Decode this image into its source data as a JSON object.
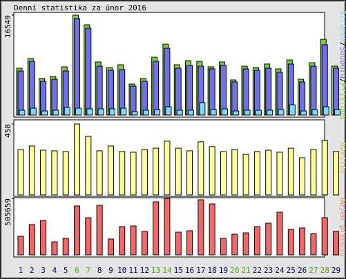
{
  "chart_data": [
    {
      "type": "bar",
      "title": "Denní statistika za únor 2016",
      "ylim": [
        0,
        16549
      ],
      "yticks": [
        16549
      ],
      "legend_separator": "/",
      "series": [
        {
          "name": "Přístupů",
          "color": "#7ccc3c",
          "values": [
            7760,
            9360,
            6050,
            6390,
            7990,
            16549,
            14950,
            8790,
            7870,
            8330,
            5130,
            6050,
            9580,
            11750,
            8330,
            9010,
            8900,
            7990,
            8790,
            5820,
            8100,
            7870,
            8450,
            7650,
            9130,
            5930,
            8670,
            12550,
            8100
          ]
        },
        {
          "name": "Souborů",
          "color": "#7070e8",
          "values": [
            7300,
            8900,
            5590,
            5930,
            7300,
            15970,
            14380,
            8100,
            7420,
            7530,
            4790,
            5590,
            8900,
            11070,
            7760,
            8220,
            8100,
            7650,
            8220,
            5480,
            7650,
            7420,
            7760,
            7080,
            8450,
            5480,
            8100,
            11640,
            7760
          ]
        },
        {
          "name": "Stránek",
          "color": "#80d8ff",
          "values": [
            800,
            1140,
            680,
            800,
            1260,
            1140,
            1030,
            1030,
            1030,
            1140,
            570,
            800,
            910,
            1370,
            800,
            800,
            2050,
            910,
            1030,
            680,
            800,
            800,
            800,
            910,
            1710,
            680,
            910,
            1370,
            910
          ]
        }
      ]
    },
    {
      "type": "bar",
      "ylim": [
        0,
        458
      ],
      "yticks": [
        458
      ],
      "series": [
        {
          "name": "Návštěv",
          "color": "#ffff99",
          "label_color": "#c8c860",
          "values": [
            294,
            316,
            289,
            285,
            280,
            458,
            378,
            285,
            316,
            280,
            276,
            294,
            302,
            347,
            302,
            285,
            343,
            312,
            280,
            294,
            262,
            280,
            289,
            276,
            302,
            240,
            294,
            352,
            280
          ]
        }
      ]
    },
    {
      "type": "bar",
      "ylim": [
        0,
        505659
      ],
      "yticks": [
        505659
      ],
      "categories": [
        "1",
        "2",
        "3",
        "4",
        "5",
        "6",
        "7",
        "8",
        "9",
        "10",
        "11",
        "12",
        "13",
        "14",
        "15",
        "16",
        "17",
        "18",
        "19",
        "20",
        "21",
        "22",
        "23",
        "24",
        "25",
        "26",
        "27",
        "28",
        "29"
      ],
      "category_colors": [
        "#000060",
        "#000060",
        "#000060",
        "#000060",
        "#000060",
        "#4aa010",
        "#4aa010",
        "#000060",
        "#000060",
        "#000060",
        "#000060",
        "#000060",
        "#4aa010",
        "#4aa010",
        "#000060",
        "#000060",
        "#000060",
        "#000060",
        "#000060",
        "#4aa010",
        "#4aa010",
        "#000060",
        "#000060",
        "#000060",
        "#000060",
        "#000060",
        "#4aa010",
        "#4aa010",
        "#000060"
      ],
      "series": [
        {
          "name": "Objem přenosu",
          "color": "#f06868",
          "label_color": "#f08080",
          "values": [
            166500,
            271300,
            308300,
            117200,
            148000,
            437900,
            333000,
            444000,
            141800,
            252800,
            259000,
            209700,
            474900,
            505659,
            203500,
            215800,
            493400,
            456400,
            148000,
            185000,
            197300,
            252800,
            283700,
            382400,
            228200,
            240500,
            191200,
            333000,
            209700
          ]
        }
      ]
    }
  ]
}
